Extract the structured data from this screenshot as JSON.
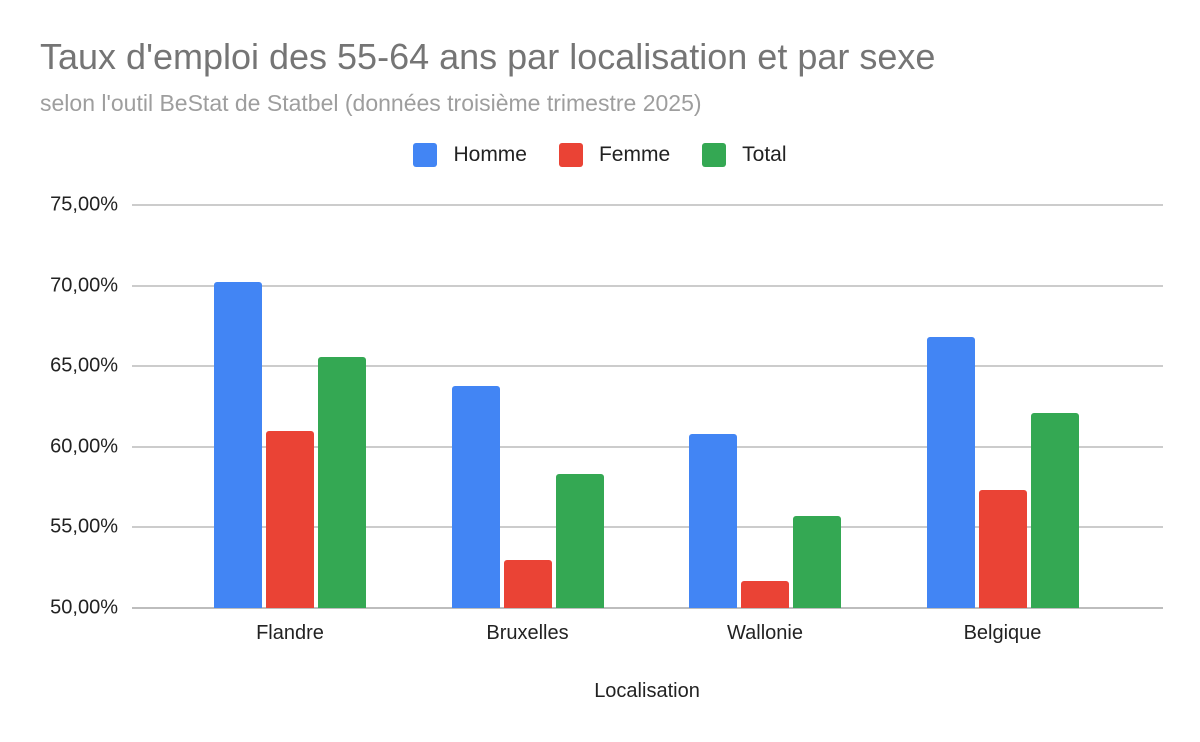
{
  "header": {
    "title": "Taux d'emploi des 55-64 ans par localisation et par sexe",
    "subtitle": "selon l'outil BeStat de Statbel (données troisième trimestre 2025)"
  },
  "legend": [
    {
      "label": "Homme",
      "color": "#4285f4"
    },
    {
      "label": "Femme",
      "color": "#ea4335"
    },
    {
      "label": "Total",
      "color": "#34a853"
    }
  ],
  "axes": {
    "y_ticks": [
      "50,00%",
      "55,00%",
      "60,00%",
      "65,00%",
      "70,00%",
      "75,00%"
    ],
    "x_label": "Localisation"
  },
  "chart_data": {
    "type": "bar",
    "title": "Taux d'emploi des 55-64 ans par localisation et par sexe",
    "subtitle": "selon l'outil BeStat de Statbel (données troisième trimestre 2025)",
    "categories": [
      "Flandre",
      "Bruxelles",
      "Wallonie",
      "Belgique"
    ],
    "series": [
      {
        "name": "Homme",
        "color": "#4285f4",
        "values": [
          70.2,
          63.8,
          60.8,
          66.8
        ]
      },
      {
        "name": "Femme",
        "color": "#ea4335",
        "values": [
          61.0,
          53.0,
          51.7,
          57.3
        ]
      },
      {
        "name": "Total",
        "color": "#34a853",
        "values": [
          65.6,
          58.3,
          55.7,
          62.1
        ]
      }
    ],
    "xlabel": "Localisation",
    "ylabel": "",
    "ylim": [
      50,
      75
    ],
    "y_tick_labels": [
      "50,00%",
      "55,00%",
      "60,00%",
      "65,00%",
      "70,00%",
      "75,00%"
    ],
    "grid": true,
    "legend_position": "top"
  }
}
